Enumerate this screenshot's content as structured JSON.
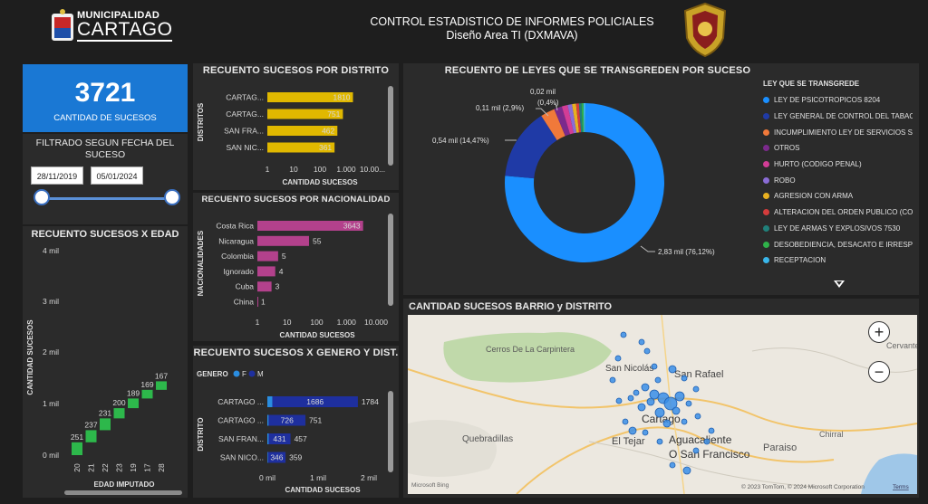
{
  "header": {
    "logo_top": "MUNICIPALIDAD",
    "logo_bottom": "CARTAGO",
    "title_line1": "CONTROL ESTADISTICO DE INFORMES POLICIALES",
    "title_line2": "Diseño Area TI (DXMAVA)"
  },
  "kpi": {
    "value": "3721",
    "label": "CANTIDAD DE SUCESOS"
  },
  "filter": {
    "title": "FILTRADO SEGUN FECHA DEL SUCESO",
    "start_date": "28/11/2019",
    "end_date": "05/01/2024",
    "range": [
      0,
      1
    ]
  },
  "edad_chart": {
    "title": "RECUENTO SUCESOS X EDAD",
    "ylabel": "CANTIDAD SUCESOS",
    "xlabel": "EDAD IMPUTADO",
    "yticks": [
      "4 mil",
      "3 mil",
      "2 mil",
      "1 mil",
      "0 mil"
    ],
    "color": "#2db84b"
  },
  "distrito_chart": {
    "title": "RECUENTO SUCESOS POR DISTRITO",
    "ylabel": "DISTRITOS",
    "xlabel": "CANTIDAD SUCESOS",
    "xticks": [
      "1",
      "10",
      "100",
      "1.000",
      "10.00..."
    ],
    "color": "#e0b800"
  },
  "nacionalidad_chart": {
    "title": "RECUENTO SUCESOS POR NACIONALIDAD",
    "ylabel": "NACIONALIDADES",
    "xlabel": "CANTIDAD SUCESOS",
    "xticks": [
      "1",
      "10",
      "100",
      "1.000",
      "10.000"
    ],
    "color": "#b3418c"
  },
  "genero_chart": {
    "title": "RECUENTO SUCESOS X GENERO Y DIST.",
    "legend_title": "GENERO",
    "legend": [
      {
        "name": "F",
        "color": "#2a8de0"
      },
      {
        "name": "M",
        "color": "#1e2f9e"
      }
    ],
    "ylabel": "DISTRITO",
    "xlabel": "CANTIDAD SUCESOS",
    "xticks": [
      "0 mil",
      "1 mil",
      "2 mil"
    ]
  },
  "leyes_chart": {
    "title": "RECUENTO DE LEYES QUE SE TRANSGREDEN POR SUCESO",
    "legend_title": "LEY QUE SE TRANSGREDE",
    "legend_items": [
      {
        "label": "LEY DE PSICOTROPICOS 8204",
        "color": "#1a8fff"
      },
      {
        "label": "LEY GENERAL DE CONTROL DEL TABAC...",
        "color": "#1f3aa6"
      },
      {
        "label": "INCUMPLIMIENTO LEY DE SERVICIOS S...",
        "color": "#f0793a"
      },
      {
        "label": "OTROS",
        "color": "#7b2a8c"
      },
      {
        "label": "HURTO (CODIGO PENAL)",
        "color": "#d23d96"
      },
      {
        "label": "ROBO",
        "color": "#8a6cd6"
      },
      {
        "label": "AGRESION CON ARMA",
        "color": "#e8b020"
      },
      {
        "label": "ALTERACION DEL ORDEN PUBLICO (CO...",
        "color": "#d43c3c"
      },
      {
        "label": "LEY DE ARMAS Y EXPLOSIVOS 7530",
        "color": "#20807a"
      },
      {
        "label": "DESOBEDIENCIA, DESACATO E IRRESPE...",
        "color": "#2fb24a"
      },
      {
        "label": "RECEPTACION",
        "color": "#39b6ea"
      }
    ],
    "labels": {
      "slice1": "2,83 mil (76,12%)",
      "slice2": "0,54 mil (14,47%)",
      "slice3": "0,11 mil (2,9%)",
      "slice4_top": "0,02 mil",
      "slice4_bottom": "(0,4%)"
    }
  },
  "map": {
    "title": "CANTIDAD SUCESOS BARRIO y DISTRITO",
    "places": [
      "Cerros De La Carpintera",
      "San Nicolás",
      "San Rafael",
      "Cartago",
      "El Tejar",
      "Aguacaliente",
      "O San Francisco",
      "Quebradillas",
      "Paraiso",
      "Chirral",
      "Cervante"
    ],
    "copyright": "© 2023 TomTom, © 2024 Microsoft Corporation",
    "terms": "Terms",
    "bing": "Microsoft Bing",
    "zoom_in": "+",
    "zoom_out": "−"
  },
  "chart_data": [
    {
      "type": "bar",
      "title": "RECUENTO SUCESOS X EDAD",
      "xlabel": "EDAD IMPUTADO",
      "ylabel": "CANTIDAD SUCESOS",
      "categories": [
        "20",
        "21",
        "22",
        "23",
        "19",
        "17",
        "28"
      ],
      "values": [
        251,
        237,
        231,
        200,
        189,
        169,
        167
      ],
      "ylim": [
        0,
        4000
      ]
    },
    {
      "type": "bar",
      "orientation": "horizontal",
      "xscale": "log",
      "title": "RECUENTO SUCESOS POR DISTRITO",
      "xlabel": "CANTIDAD SUCESOS",
      "ylabel": "DISTRITOS",
      "categories": [
        "CARTAG...",
        "CARTAG...",
        "SAN FRA...",
        "SAN NIC..."
      ],
      "values": [
        1810,
        751,
        462,
        361
      ],
      "xlim": [
        1,
        10000
      ]
    },
    {
      "type": "bar",
      "orientation": "horizontal",
      "xscale": "log",
      "title": "RECUENTO SUCESOS POR NACIONALIDAD",
      "xlabel": "CANTIDAD SUCESOS",
      "ylabel": "NACIONALIDADES",
      "categories": [
        "Costa Rica",
        "Nicaragua",
        "Colombia",
        "Ignorado",
        "Cuba",
        "China"
      ],
      "values": [
        3643,
        55,
        5,
        4,
        3,
        1
      ],
      "xlim": [
        1,
        10000
      ]
    },
    {
      "type": "bar",
      "orientation": "horizontal",
      "stacked": true,
      "title": "RECUENTO SUCESOS X GENERO Y DIST.",
      "xlabel": "CANTIDAD SUCESOS",
      "ylabel": "DISTRITO",
      "categories": [
        "CARTAGO ...",
        "CARTAGO ...",
        "SAN FRAN...",
        "SAN NICO..."
      ],
      "series": [
        {
          "name": "F",
          "values": [
            98,
            25,
            26,
            13
          ]
        },
        {
          "name": "M",
          "values": [
            1686,
            726,
            431,
            346
          ]
        }
      ],
      "totals": [
        1784,
        751,
        457,
        359
      ],
      "xlim": [
        0,
        2000
      ]
    },
    {
      "type": "pie",
      "donut": true,
      "title": "RECUENTO DE LEYES QUE SE TRANSGREDEN POR SUCESO",
      "categories": [
        "LEY DE PSICOTROPICOS 8204",
        "LEY GENERAL DE CONTROL DEL TABAC...",
        "INCUMPLIMIENTO LEY DE SERVICIOS S...",
        "OTROS",
        "HURTO (CODIGO PENAL)",
        "ROBO",
        "AGRESION CON ARMA",
        "ALTERACION DEL ORDEN PUBLICO (CO...",
        "LEY DE ARMAS Y EXPLOSIVOS 7530",
        "DESOBEDIENCIA, DESACATO E IRRESPE...",
        "RECEPTACION"
      ],
      "values": [
        76.12,
        14.47,
        2.9,
        1.6,
        1.2,
        0.9,
        0.8,
        0.6,
        0.5,
        0.4,
        0.4
      ]
    }
  ]
}
